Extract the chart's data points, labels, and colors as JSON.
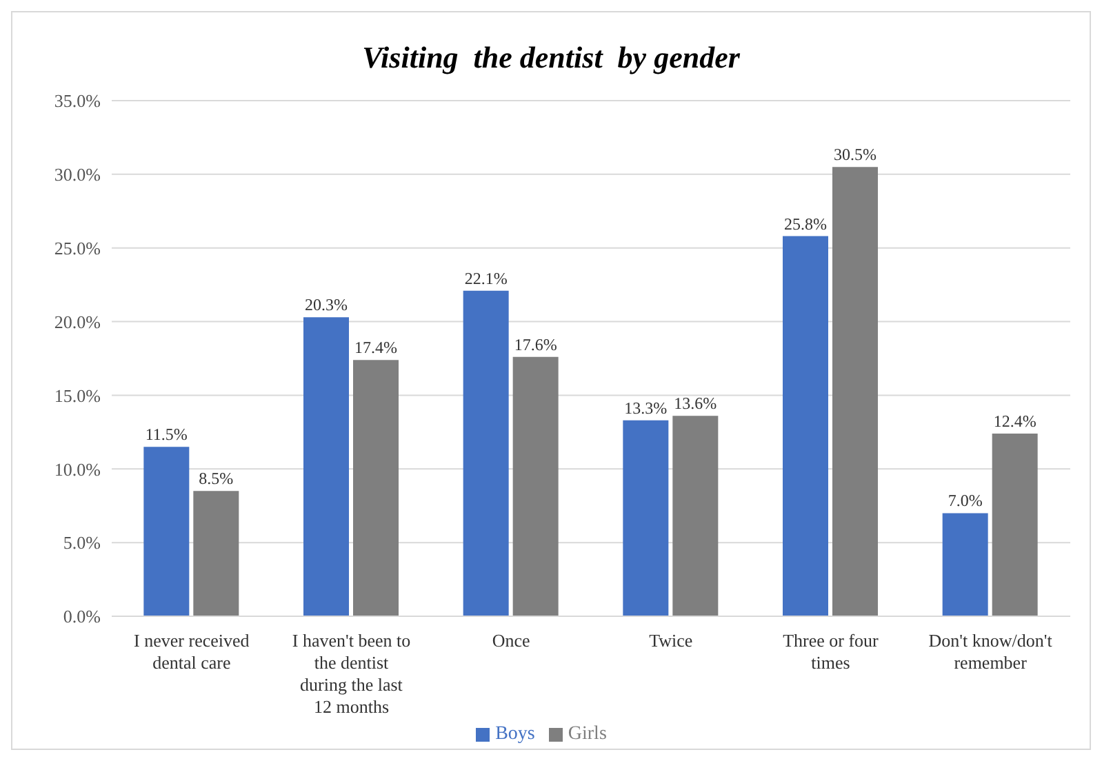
{
  "chart_data": {
    "type": "bar",
    "title": "Visiting  the dentist  by gender",
    "categories": [
      "I never received dental care",
      "I haven't been to the dentist during the last 12 months",
      "Once",
      "Twice",
      "Three or four times",
      "Don't know/don't remember"
    ],
    "series": [
      {
        "name": "Boys",
        "color": "#4472c4",
        "values": [
          11.5,
          20.3,
          22.1,
          13.3,
          25.8,
          7.0
        ],
        "value_labels": [
          "11.5%",
          "20.3%",
          "22.1%",
          "13.3%",
          "25.8%",
          "7.0%"
        ]
      },
      {
        "name": "Girls",
        "color": "#7f7f7f",
        "values": [
          8.5,
          17.4,
          17.6,
          13.6,
          30.5,
          12.4
        ],
        "value_labels": [
          "8.5%",
          "17.4%",
          "17.6%",
          "13.6%",
          "30.5%",
          "12.4%"
        ]
      }
    ],
    "ylim": [
      0,
      35
    ],
    "yticks": [
      {
        "value": 0,
        "label": "0.0%"
      },
      {
        "value": 5,
        "label": "5.0%"
      },
      {
        "value": 10,
        "label": "10.0%"
      },
      {
        "value": 15,
        "label": "15.0%"
      },
      {
        "value": 20,
        "label": "20.0%"
      },
      {
        "value": 25,
        "label": "25.0%"
      },
      {
        "value": 30,
        "label": "30.0%"
      },
      {
        "value": 35,
        "label": "35.0%"
      }
    ],
    "grid": "y",
    "legend": "bottom"
  }
}
